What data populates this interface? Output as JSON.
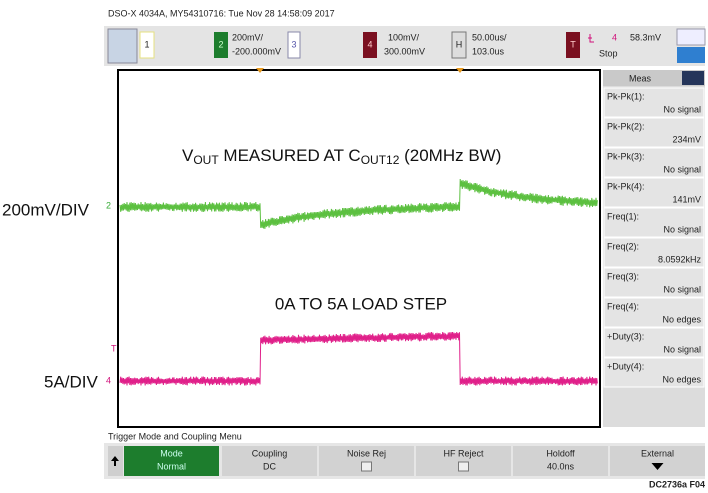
{
  "header": {
    "title": "DSO-X 4034A, MY54310716: Tue Nov 28 14:58:09 2017"
  },
  "toolbar": {
    "ch1": "1",
    "ch2": {
      "num": "2",
      "scale": "200mV/",
      "offset": "-200.000mV"
    },
    "ch3": "3",
    "ch4": {
      "num": "4",
      "scale": "100mV/",
      "offset": "300.00mV"
    },
    "timebase": {
      "key": "H",
      "scale": "50.00us/",
      "delay": "103.0us"
    },
    "trigger": {
      "key": "T",
      "source": "4",
      "level": "58.3mV",
      "status": "Stop"
    }
  },
  "annotations": {
    "vout": [
      "V",
      "OUT",
      " MEASURED AT C",
      "OUT12",
      " (20MHz BW)"
    ],
    "load": "0A TO 5A LOAD STEP",
    "ch2_scale": "200mV/DIV",
    "ch4_scale": "5A/DIV"
  },
  "markers": {
    "ch2": "2",
    "trig": "T",
    "ch4": "4"
  },
  "meas": {
    "title": "Meas",
    "items": [
      {
        "label": "Pk-Pk(1):",
        "value": "No signal"
      },
      {
        "label": "Pk-Pk(2):",
        "value": "234mV"
      },
      {
        "label": "Pk-Pk(3):",
        "value": "No signal"
      },
      {
        "label": "Pk-Pk(4):",
        "value": "141mV"
      },
      {
        "label": "Freq(1):",
        "value": "No signal"
      },
      {
        "label": "Freq(2):",
        "value": "8.0592kHz"
      },
      {
        "label": "Freq(3):",
        "value": "No signal"
      },
      {
        "label": "Freq(4):",
        "value": "No edges"
      },
      {
        "label": "+Duty(3):",
        "value": "No signal"
      },
      {
        "label": "+Duty(4):",
        "value": "No edges"
      }
    ]
  },
  "menu": {
    "title": "Trigger Mode and Coupling Menu",
    "keys": [
      {
        "label": "Mode",
        "value": "Normal"
      },
      {
        "label": "Coupling",
        "value": "DC"
      },
      {
        "label": "Noise Rej"
      },
      {
        "label": "HF Reject"
      },
      {
        "label": "Holdoff",
        "value": "40.0ns"
      },
      {
        "label": "External"
      }
    ]
  },
  "footer": "DC2736a F04"
}
